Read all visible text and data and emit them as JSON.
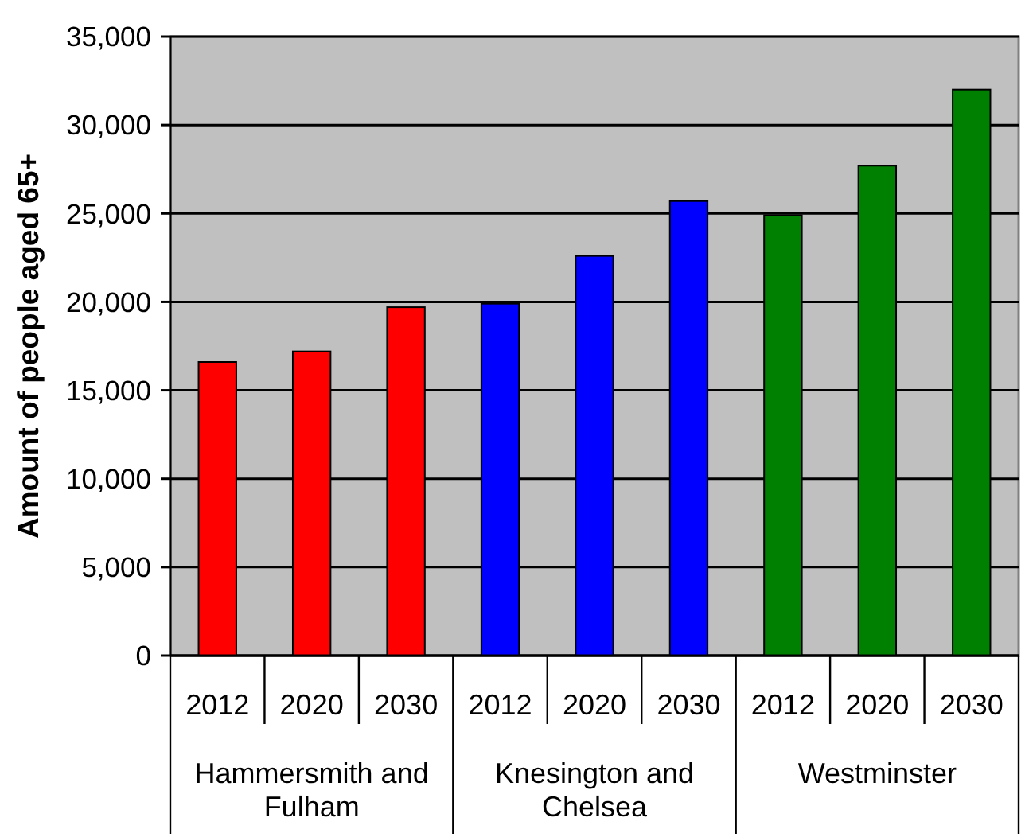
{
  "chart_data": {
    "type": "bar",
    "ylabel": "Amount of people aged 65+",
    "categories": [
      "2012",
      "2020",
      "2030",
      "2012",
      "2020",
      "2030",
      "2012",
      "2020",
      "2030"
    ],
    "series": [
      {
        "name": "Hammersmith and Fulham",
        "color": "#ff0000",
        "values": [
          16600,
          17200,
          19700,
          null,
          null,
          null,
          null,
          null,
          null
        ]
      },
      {
        "name": "Knesington and Chelsea",
        "color": "#0000ff",
        "values": [
          null,
          null,
          null,
          19900,
          22600,
          25700,
          null,
          null,
          null
        ]
      },
      {
        "name": "Westminster",
        "color": "#008000",
        "values": [
          null,
          null,
          null,
          null,
          null,
          null,
          24900,
          27700,
          32000
        ]
      }
    ],
    "stacked": true,
    "ylim": [
      0,
      35000
    ],
    "yticks": [
      0,
      {
        "value": 5000,
        "label": "5,000"
      },
      {
        "value": 10000,
        "label": "10,000"
      },
      {
        "value": 15000,
        "label": "15,000"
      },
      {
        "value": 20000,
        "label": "20,000"
      },
      {
        "value": 25000,
        "label": "25,000"
      },
      {
        "value": 30000,
        "label": "30,000"
      },
      {
        "value": 35000,
        "label": "35,000"
      }
    ],
    "grid": "y",
    "legend": "bottom"
  }
}
